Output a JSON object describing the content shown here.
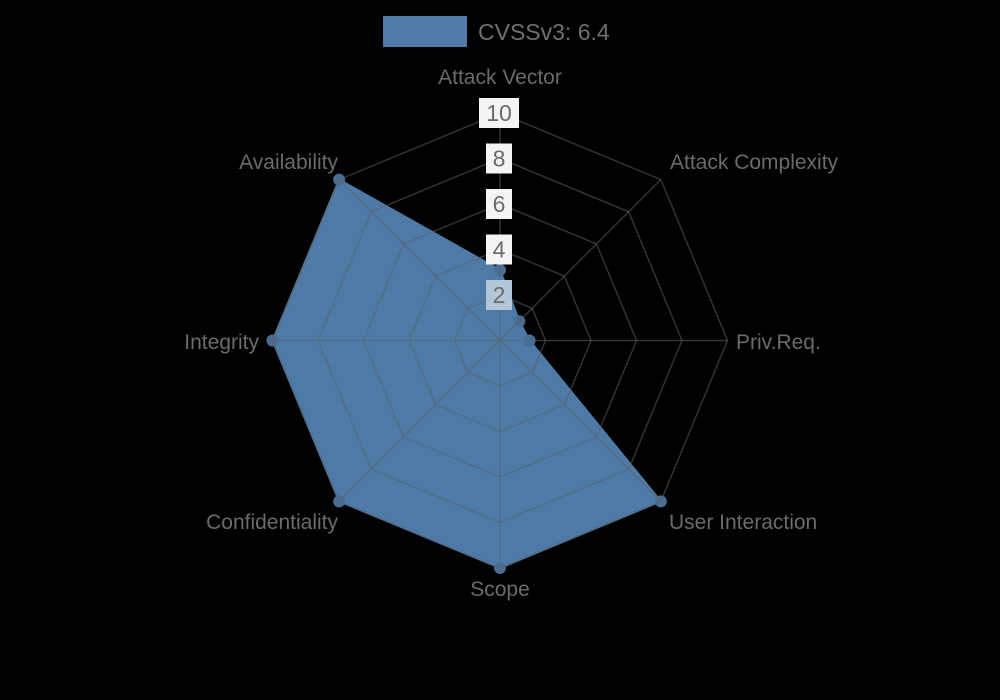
{
  "background_color": "#000000",
  "legend": {
    "label": "CVSSv3: 6.4",
    "swatch_color": "#4d7aa7"
  },
  "chart_data": {
    "type": "radar",
    "title": "CVSSv3: 6.4",
    "categories": [
      "Attack Vector",
      "Attack Complexity",
      "Priv.Req.",
      "User Interaction",
      "Scope",
      "Confidentiality",
      "Integrity",
      "Availability"
    ],
    "series": [
      {
        "name": "CVSSv3: 6.4",
        "values": [
          3.1,
          1.2,
          1.3,
          10,
          10,
          10,
          10,
          10
        ],
        "color": "#4d7aa7"
      }
    ],
    "ticks": [
      2,
      4,
      6,
      8,
      10
    ],
    "rmin": 0,
    "rmax": 10,
    "grid": true,
    "grid_shape": "polygon",
    "legend_position": "top-center"
  },
  "colors": {
    "marker": "#486d97",
    "grid": "#606060",
    "axis_label": "#6b6b6b",
    "tick_text": "#6b6b6b",
    "tick_box": "#f4f4f4",
    "tick_box_over_fill": "#b3c6d9",
    "legend_text": "#707070"
  }
}
